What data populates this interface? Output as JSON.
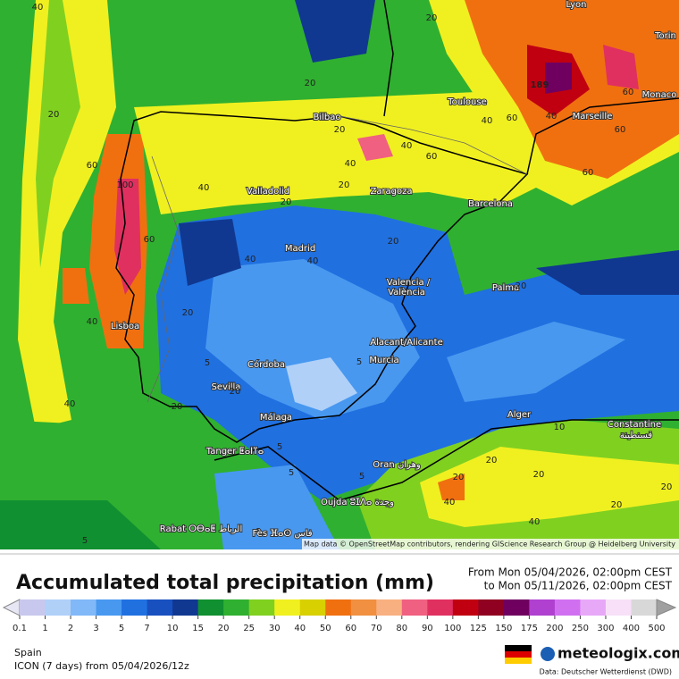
{
  "header": {
    "title": "Accumulated total precipitation (mm)",
    "from": "From Mon 05/04/2026, 02:00pm CEST",
    "to": "to Mon 05/11/2026, 02:00pm CEST"
  },
  "map": {
    "attribution": "Map data © OpenStreetMap contributors, rendering GIScience Research Group @ Heidelberg University",
    "cities": [
      "Lyon",
      "Torin",
      "Monaco",
      "Marseille",
      "Toulouse",
      "Bilbao",
      "Valladolid",
      "Zaragoza",
      "Barcelona",
      "Madrid",
      "Valencia /",
      "València",
      "Palma",
      "Lisboa",
      "Alacant/Alicante",
      "Murcia",
      "Córdoba",
      "Sevilla",
      "Málaga",
      "Alger",
      "Constantine",
      "قسنطينة",
      "Tanger ⵟⴰⵏⴶⴰ",
      "Oran وهران",
      "Oujda ⵓⵊⴷⴰ وجدة",
      "Rabat ⵔⴱⴰⵟ الرباط",
      "Fès ⴼⴰⵙ فاس"
    ],
    "labels": [
      40,
      20,
      60,
      100,
      40,
      40,
      60,
      40,
      40,
      20,
      20,
      40,
      60,
      40,
      20,
      20,
      40,
      20,
      20,
      20,
      5,
      5,
      5,
      5,
      5,
      40,
      60,
      60,
      60,
      60,
      40,
      20,
      20,
      10,
      20,
      20,
      20,
      40,
      20,
      20,
      40,
      5,
      20,
      189
    ]
  },
  "legend": {
    "ticks": [
      0.1,
      1,
      2,
      3,
      5,
      7,
      10,
      15,
      20,
      25,
      30,
      40,
      50,
      60,
      70,
      80,
      90,
      100,
      125,
      150,
      175,
      200,
      250,
      300,
      400,
      500
    ],
    "colors": [
      "#e6e6f4",
      "#c8c8ee",
      "#b0d0f8",
      "#80b8f8",
      "#4898f0",
      "#2070e0",
      "#1850c0",
      "#103890",
      "#109030",
      "#30b030",
      "#80d020",
      "#f0f020",
      "#d8d000",
      "#f07010",
      "#f09040",
      "#f8b080",
      "#f06080",
      "#e03060",
      "#c00010",
      "#900020",
      "#700060",
      "#b040d0",
      "#d070f0",
      "#e8a8f8",
      "#f8e0f8",
      "#d8d8d8",
      "#a0a0a0"
    ]
  },
  "footer": {
    "region": "Spain",
    "model": "ICON (7 days)  from  05/04/2026/12z",
    "brand": "meteologix.com",
    "source": "Data: Deutscher Wetterdienst (DWD)"
  }
}
